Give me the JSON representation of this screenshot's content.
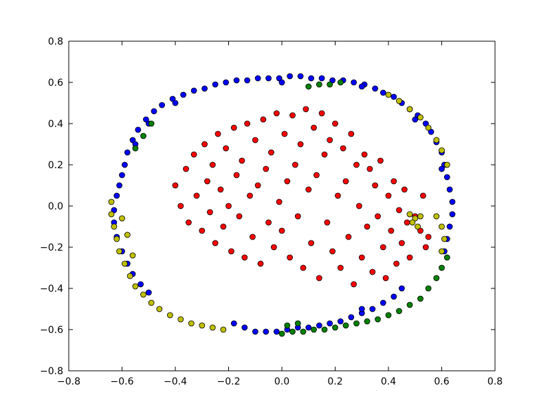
{
  "chart_data": {
    "type": "scatter",
    "title": "",
    "xlabel": "",
    "ylabel": "",
    "xlim": [
      -0.8,
      0.8
    ],
    "ylim": [
      -0.8,
      0.8
    ],
    "grid": false,
    "legend": "none",
    "x_ticks": [
      -0.8,
      -0.6,
      -0.4,
      -0.2,
      0.0,
      0.2,
      0.4,
      0.6,
      0.8
    ],
    "y_ticks": [
      -0.8,
      -0.6,
      -0.4,
      -0.2,
      0.0,
      0.2,
      0.4,
      0.6,
      0.8
    ],
    "x_tick_labels": [
      "−0.8",
      "−0.6",
      "−0.4",
      "−0.2",
      "0.0",
      "0.2",
      "0.4",
      "0.6",
      "0.8"
    ],
    "y_tick_labels": [
      "−0.8",
      "−0.6",
      "−0.4",
      "−0.2",
      "0.0",
      "0.2",
      "0.4",
      "0.6",
      "0.8"
    ],
    "series": [
      {
        "color": "#ff0000",
        "points": [
          [
            -0.4,
            0.1
          ],
          [
            -0.38,
            0.0
          ],
          [
            -0.36,
            0.18
          ],
          [
            -0.35,
            -0.08
          ],
          [
            -0.33,
            0.25
          ],
          [
            -0.32,
            0.05
          ],
          [
            -0.3,
            -0.12
          ],
          [
            -0.29,
            0.3
          ],
          [
            -0.28,
            0.12
          ],
          [
            -0.27,
            -0.03
          ],
          [
            -0.26,
            0.2
          ],
          [
            -0.25,
            -0.18
          ],
          [
            -0.24,
            0.35
          ],
          [
            -0.23,
            0.08
          ],
          [
            -0.22,
            -0.1
          ],
          [
            -0.21,
            0.28
          ],
          [
            -0.2,
            0.0
          ],
          [
            -0.19,
            -0.22
          ],
          [
            -0.18,
            0.38
          ],
          [
            -0.17,
            0.15
          ],
          [
            -0.16,
            -0.05
          ],
          [
            -0.15,
            0.22
          ],
          [
            -0.14,
            -0.25
          ],
          [
            -0.13,
            0.4
          ],
          [
            -0.12,
            0.05
          ],
          [
            -0.11,
            -0.15
          ],
          [
            -0.1,
            0.32
          ],
          [
            -0.09,
            0.1
          ],
          [
            -0.08,
            -0.28
          ],
          [
            -0.07,
            0.42
          ],
          [
            -0.06,
            0.18
          ],
          [
            -0.05,
            -0.08
          ],
          [
            -0.04,
            0.26
          ],
          [
            -0.03,
            -0.2
          ],
          [
            -0.02,
            0.45
          ],
          [
            -0.01,
            0.02
          ],
          [
            0.0,
            -0.12
          ],
          [
            0.01,
            0.35
          ],
          [
            0.02,
            0.12
          ],
          [
            0.03,
            -0.25
          ],
          [
            0.04,
            0.44
          ],
          [
            0.05,
            0.2
          ],
          [
            0.06,
            -0.05
          ],
          [
            0.07,
            0.3
          ],
          [
            0.08,
            -0.3
          ],
          [
            0.09,
            0.47
          ],
          [
            0.1,
            0.08
          ],
          [
            0.11,
            -0.18
          ],
          [
            0.12,
            0.38
          ],
          [
            0.13,
            0.15
          ],
          [
            0.14,
            -0.35
          ],
          [
            0.15,
            0.45
          ],
          [
            0.16,
            0.25
          ],
          [
            0.17,
            -0.08
          ],
          [
            0.18,
            0.32
          ],
          [
            0.19,
            -0.22
          ],
          [
            0.2,
            0.4
          ],
          [
            0.21,
            0.05
          ],
          [
            0.22,
            -0.3
          ],
          [
            0.23,
            0.28
          ],
          [
            0.24,
            0.12
          ],
          [
            0.25,
            -0.15
          ],
          [
            0.26,
            0.35
          ],
          [
            0.27,
            -0.38
          ],
          [
            0.28,
            0.2
          ],
          [
            0.29,
            0.0
          ],
          [
            0.3,
            -0.25
          ],
          [
            0.31,
            0.25
          ],
          [
            0.32,
            -0.1
          ],
          [
            0.33,
            0.18
          ],
          [
            0.34,
            -0.32
          ],
          [
            0.35,
            0.1
          ],
          [
            0.36,
            -0.05
          ],
          [
            0.37,
            0.22
          ],
          [
            0.38,
            -0.2
          ],
          [
            0.39,
            -0.35
          ],
          [
            0.4,
            0.05
          ],
          [
            0.41,
            -0.12
          ],
          [
            0.42,
            0.12
          ],
          [
            0.43,
            -0.28
          ],
          [
            0.44,
            -0.02
          ],
          [
            0.45,
            -0.18
          ],
          [
            0.46,
            0.08
          ],
          [
            0.47,
            -0.08
          ],
          [
            0.48,
            -0.25
          ],
          [
            0.5,
            -0.05
          ],
          [
            0.52,
            -0.12
          ],
          [
            0.53,
            0.05
          ],
          [
            0.55,
            -0.15
          ],
          [
            0.54,
            -0.2
          ]
        ]
      },
      {
        "color": "#0000ff",
        "points": [
          [
            -0.62,
            0.05
          ],
          [
            -0.61,
            0.1
          ],
          [
            -0.6,
            0.15
          ],
          [
            -0.59,
            0.2
          ],
          [
            -0.58,
            0.26
          ],
          [
            -0.56,
            0.32
          ],
          [
            -0.54,
            0.37
          ],
          [
            -0.51,
            0.42
          ],
          [
            -0.48,
            0.46
          ],
          [
            -0.45,
            0.49
          ],
          [
            -0.41,
            0.52
          ],
          [
            -0.37,
            0.54
          ],
          [
            -0.33,
            0.56
          ],
          [
            -0.29,
            0.57
          ],
          [
            -0.25,
            0.59
          ],
          [
            -0.21,
            0.6
          ],
          [
            -0.17,
            0.61
          ],
          [
            -0.13,
            0.61
          ],
          [
            -0.09,
            0.62
          ],
          [
            -0.05,
            0.62
          ],
          [
            -0.01,
            0.62
          ],
          [
            0.03,
            0.63
          ],
          [
            0.07,
            0.63
          ],
          [
            0.11,
            0.62
          ],
          [
            0.15,
            0.62
          ],
          [
            0.19,
            0.61
          ],
          [
            0.23,
            0.61
          ],
          [
            0.27,
            0.6
          ],
          [
            0.31,
            0.59
          ],
          [
            0.35,
            0.57
          ],
          [
            0.38,
            0.55
          ],
          [
            0.42,
            0.53
          ],
          [
            0.45,
            0.5
          ],
          [
            0.48,
            0.47
          ],
          [
            0.51,
            0.44
          ],
          [
            0.54,
            0.4
          ],
          [
            0.56,
            0.36
          ],
          [
            0.58,
            0.31
          ],
          [
            0.6,
            0.26
          ],
          [
            0.61,
            0.2
          ],
          [
            0.62,
            0.14
          ],
          [
            0.63,
            0.08
          ],
          [
            0.64,
            0.02
          ],
          [
            0.64,
            -0.04
          ],
          [
            0.63,
            -0.1
          ],
          [
            0.62,
            -0.16
          ],
          [
            0.61,
            -0.22
          ],
          [
            0.45,
            -0.4
          ],
          [
            0.42,
            -0.44
          ],
          [
            0.38,
            -0.47
          ],
          [
            0.34,
            -0.5
          ],
          [
            0.3,
            -0.52
          ],
          [
            0.26,
            -0.54
          ],
          [
            0.22,
            -0.56
          ],
          [
            0.18,
            -0.57
          ],
          [
            0.14,
            -0.58
          ],
          [
            0.1,
            -0.59
          ],
          [
            0.06,
            -0.59
          ],
          [
            0.02,
            -0.6
          ],
          [
            -0.02,
            -0.61
          ],
          [
            -0.06,
            -0.61
          ],
          [
            -0.1,
            -0.61
          ],
          [
            -0.14,
            -0.59
          ],
          [
            -0.18,
            -0.57
          ],
          [
            -0.5,
            -0.42
          ],
          [
            -0.53,
            -0.38
          ],
          [
            -0.56,
            -0.33
          ],
          [
            -0.58,
            -0.28
          ],
          [
            -0.6,
            -0.22
          ],
          [
            -0.62,
            -0.15
          ],
          [
            -0.63,
            -0.08
          ],
          [
            -0.63,
            -0.02
          ],
          [
            -0.55,
            0.3
          ],
          [
            -0.5,
            0.4
          ],
          [
            -0.4,
            0.5
          ],
          [
            0.0,
            0.6
          ],
          [
            0.3,
            0.58
          ],
          [
            0.5,
            0.42
          ],
          [
            0.6,
            0.18
          ],
          [
            0.3,
            -0.5
          ]
        ]
      },
      {
        "color": "#008000",
        "points": [
          [
            -0.55,
            0.28
          ],
          [
            -0.52,
            0.34
          ],
          [
            -0.49,
            0.4
          ],
          [
            0.1,
            0.58
          ],
          [
            0.14,
            0.59
          ],
          [
            0.18,
            0.59
          ],
          [
            0.22,
            0.6
          ],
          [
            0.55,
            -0.4
          ],
          [
            0.58,
            -0.35
          ],
          [
            0.6,
            -0.3
          ],
          [
            0.62,
            -0.25
          ],
          [
            0.52,
            -0.45
          ],
          [
            0.48,
            -0.48
          ],
          [
            0.44,
            -0.51
          ],
          [
            0.4,
            -0.53
          ],
          [
            0.36,
            -0.55
          ],
          [
            0.32,
            -0.56
          ],
          [
            0.28,
            -0.57
          ],
          [
            0.24,
            -0.58
          ],
          [
            0.2,
            -0.59
          ],
          [
            0.16,
            -0.6
          ],
          [
            0.12,
            -0.6
          ],
          [
            0.08,
            -0.61
          ],
          [
            0.04,
            -0.61
          ],
          [
            0.0,
            -0.62
          ],
          [
            0.02,
            -0.58
          ],
          [
            0.06,
            -0.57
          ]
        ]
      },
      {
        "color": "#bfbf00",
        "points": [
          [
            -0.64,
            0.02
          ],
          [
            -0.64,
            -0.04
          ],
          [
            -0.63,
            -0.1
          ],
          [
            -0.62,
            -0.16
          ],
          [
            -0.61,
            -0.22
          ],
          [
            -0.59,
            -0.28
          ],
          [
            -0.57,
            -0.34
          ],
          [
            -0.55,
            -0.39
          ],
          [
            -0.52,
            -0.43
          ],
          [
            -0.49,
            -0.47
          ],
          [
            -0.46,
            -0.5
          ],
          [
            -0.42,
            -0.53
          ],
          [
            -0.38,
            -0.55
          ],
          [
            -0.34,
            -0.57
          ],
          [
            -0.3,
            -0.58
          ],
          [
            -0.26,
            -0.59
          ],
          [
            -0.22,
            -0.6
          ],
          [
            -0.6,
            -0.06
          ],
          [
            -0.58,
            -0.14
          ],
          [
            -0.56,
            -0.24
          ],
          [
            0.4,
            0.54
          ],
          [
            0.44,
            0.51
          ],
          [
            0.48,
            0.47
          ],
          [
            0.52,
            0.43
          ],
          [
            0.55,
            0.38
          ],
          [
            0.58,
            0.32
          ],
          [
            0.6,
            0.27
          ],
          [
            0.62,
            0.2
          ],
          [
            0.6,
            -0.1
          ],
          [
            0.61,
            -0.16
          ],
          [
            0.6,
            -0.22
          ],
          [
            0.58,
            -0.05
          ],
          [
            0.48,
            -0.04
          ],
          [
            0.5,
            -0.06
          ],
          [
            0.52,
            -0.05
          ],
          [
            0.49,
            -0.08
          ],
          [
            0.51,
            -0.1
          ]
        ]
      }
    ]
  }
}
